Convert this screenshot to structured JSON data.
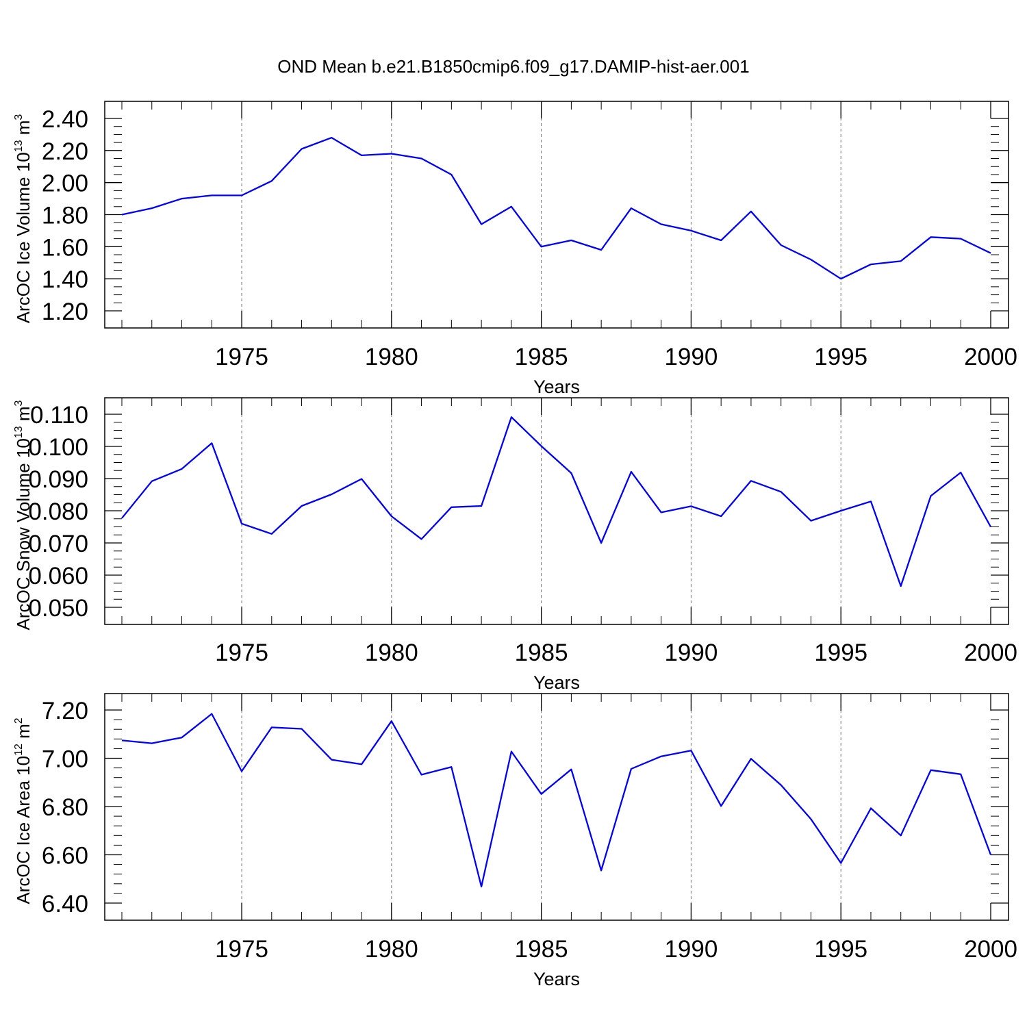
{
  "figure": {
    "title": "OND Mean b.e21.B1850cmip6.f09_g17.DAMIP-hist-aer.001"
  },
  "colors": {
    "series": "#0000ff",
    "axis": "#000000",
    "grid": "#777777"
  },
  "chart_data": [
    {
      "type": "line",
      "ylabel_main": "ArcOC Ice Volume 10",
      "ylabel_exp": "13",
      "ylabel_unit": " m",
      "ylabel_unit_exp": "3",
      "xlabel": "Years",
      "xlim": [
        1971,
        2000
      ],
      "ylim": [
        1.2,
        2.4
      ],
      "xticks": [
        "1975",
        "1980",
        "1985",
        "1990",
        "1995",
        "2000"
      ],
      "yticks": [
        "1.20",
        "1.40",
        "1.60",
        "1.80",
        "2.00",
        "2.20",
        "2.40"
      ],
      "grid": "vertical dashed at major x ticks",
      "x": [
        1971,
        1972,
        1973,
        1974,
        1975,
        1976,
        1977,
        1978,
        1979,
        1980,
        1981,
        1982,
        1983,
        1984,
        1985,
        1986,
        1987,
        1988,
        1989,
        1990,
        1991,
        1992,
        1993,
        1994,
        1995,
        1996,
        1997,
        1998,
        1999,
        2000
      ],
      "values": [
        1.8,
        1.84,
        1.9,
        1.92,
        1.92,
        2.01,
        2.21,
        2.28,
        2.17,
        2.18,
        2.15,
        2.05,
        1.74,
        1.85,
        1.6,
        1.64,
        1.58,
        1.84,
        1.74,
        1.7,
        1.64,
        1.82,
        1.61,
        1.52,
        1.4,
        1.49,
        1.51,
        1.66,
        1.65,
        1.56
      ]
    },
    {
      "type": "line",
      "ylabel_main": "ArcOC Snow Volume 10",
      "ylabel_exp": "13",
      "ylabel_unit": " m",
      "ylabel_unit_exp": "3",
      "xlabel": "Years",
      "xlim": [
        1971,
        2000
      ],
      "ylim": [
        0.05,
        0.11
      ],
      "xticks": [
        "1975",
        "1980",
        "1985",
        "1990",
        "1995",
        "2000"
      ],
      "yticks": [
        "0.050",
        "0.060",
        "0.070",
        "0.080",
        "0.090",
        "0.100",
        "0.110"
      ],
      "grid": "vertical dashed at major x ticks",
      "x": [
        1971,
        1972,
        1973,
        1974,
        1975,
        1976,
        1977,
        1978,
        1979,
        1980,
        1981,
        1982,
        1983,
        1984,
        1985,
        1986,
        1987,
        1988,
        1989,
        1990,
        1991,
        1992,
        1993,
        1994,
        1995,
        1996,
        1997,
        1998,
        1999,
        2000
      ],
      "values": [
        0.0777,
        0.0892,
        0.093,
        0.101,
        0.076,
        0.0728,
        0.0815,
        0.0851,
        0.0899,
        0.0783,
        0.0712,
        0.0811,
        0.0815,
        0.1091,
        0.1001,
        0.0917,
        0.07,
        0.0921,
        0.0795,
        0.0814,
        0.0783,
        0.0893,
        0.0859,
        0.0769,
        0.08,
        0.0829,
        0.0566,
        0.0846,
        0.0919,
        0.075
      ]
    },
    {
      "type": "line",
      "ylabel_main": "ArcOC Ice Area 10",
      "ylabel_exp": "12",
      "ylabel_unit": " m",
      "ylabel_unit_exp": "2",
      "xlabel": "Years",
      "xlim": [
        1971,
        2000
      ],
      "ylim": [
        6.4,
        7.2
      ],
      "xticks": [
        "1975",
        "1980",
        "1985",
        "1990",
        "1995",
        "2000"
      ],
      "yticks": [
        "6.40",
        "6.60",
        "6.80",
        "7.00",
        "7.20"
      ],
      "grid": "vertical dashed at major x ticks",
      "x": [
        1971,
        1972,
        1973,
        1974,
        1975,
        1976,
        1977,
        1978,
        1979,
        1980,
        1981,
        1982,
        1983,
        1984,
        1985,
        1986,
        1987,
        1988,
        1989,
        1990,
        1991,
        1992,
        1993,
        1994,
        1995,
        1996,
        1997,
        1998,
        1999,
        2000
      ],
      "values": [
        7.074,
        7.062,
        7.086,
        7.184,
        6.946,
        7.128,
        7.122,
        6.994,
        6.975,
        7.154,
        6.932,
        6.964,
        6.468,
        7.028,
        6.852,
        6.954,
        6.535,
        6.956,
        7.008,
        7.032,
        6.802,
        6.998,
        6.889,
        6.748,
        6.566,
        6.793,
        6.68,
        6.951,
        6.934,
        6.6
      ]
    }
  ]
}
